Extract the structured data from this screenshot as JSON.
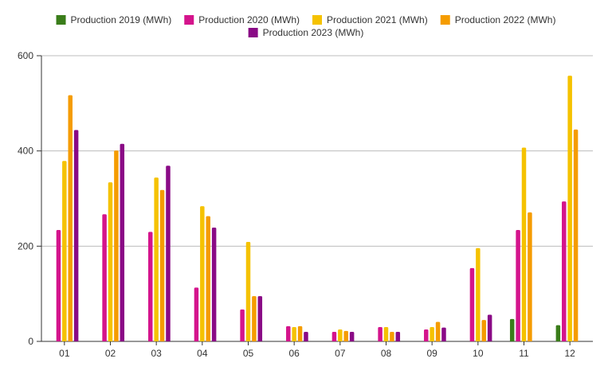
{
  "chart_data": {
    "type": "bar",
    "categories": [
      "01",
      "02",
      "03",
      "04",
      "05",
      "06",
      "07",
      "08",
      "09",
      "10",
      "11",
      "12"
    ],
    "series": [
      {
        "name": "Production 2019 (MWh)",
        "color": "#3a7d1a",
        "values": [
          null,
          null,
          null,
          null,
          null,
          null,
          null,
          null,
          null,
          null,
          47,
          34
        ]
      },
      {
        "name": "Production 2020 (MWh)",
        "color": "#d4148c",
        "values": [
          234,
          267,
          230,
          113,
          67,
          32,
          20,
          30,
          25,
          154,
          234,
          294
        ]
      },
      {
        "name": "Production 2021 (MWh)",
        "color": "#f5c200",
        "values": [
          379,
          334,
          344,
          284,
          209,
          30,
          25,
          30,
          30,
          196,
          407,
          558
        ]
      },
      {
        "name": "Production 2022 (MWh)",
        "color": "#f59c00",
        "values": [
          517,
          401,
          318,
          263,
          95,
          32,
          22,
          20,
          41,
          45,
          271,
          445
        ]
      },
      {
        "name": "Production 2023 (MWh)",
        "color": "#8a0a86",
        "values": [
          444,
          415,
          369,
          239,
          95,
          20,
          20,
          20,
          29,
          56,
          null,
          null
        ]
      }
    ],
    "ylim": [
      0,
      600
    ],
    "yticks": [
      0,
      200,
      400,
      600
    ],
    "grid": true,
    "legend_position": "top-center"
  }
}
